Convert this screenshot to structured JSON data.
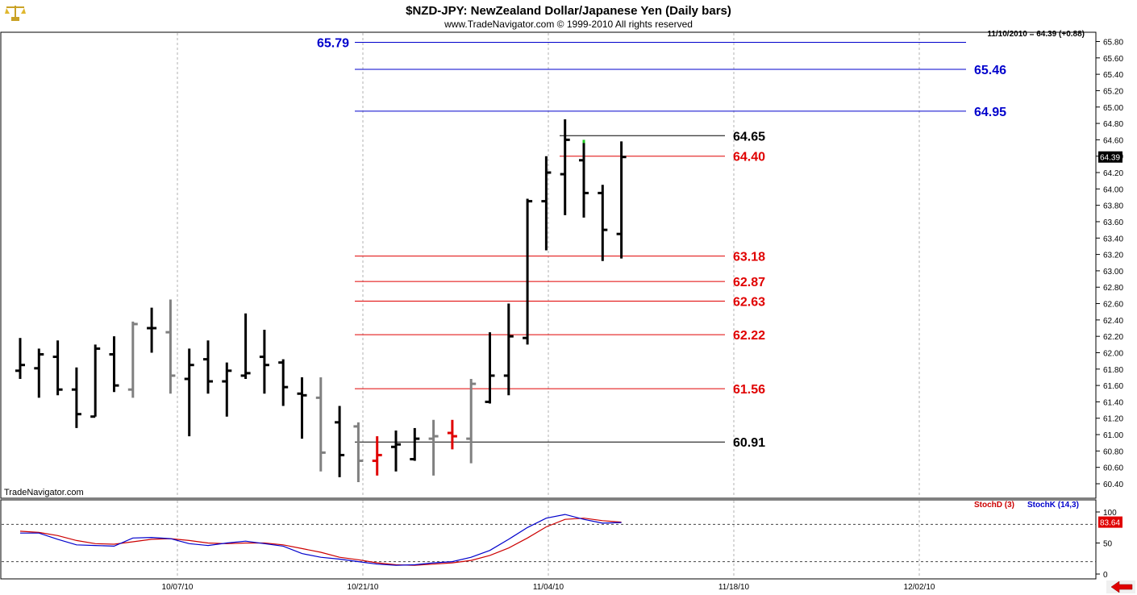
{
  "header": {
    "title": "$NZD-JPY:  NewZealand Dollar/Japanese Yen  (Daily bars)",
    "copyright": "www.TradeNavigator.com © 1999-2010 All rights reserved",
    "last_quote": "11/10/2010 = 64.39 (+0.88)",
    "watermark": "TradeNavigator.com",
    "logo_icon": "scales-icon"
  },
  "colors": {
    "bar": "#000000",
    "bar_gray": "#808080",
    "bar_red": "#e00000",
    "level_blue": "#0000cc",
    "level_red": "#e00000",
    "level_black": "#000000",
    "stoch_d": "#cc0000",
    "stoch_k": "#0000cc",
    "grid": "#b0b0b0",
    "price_tag_bg": "#000000",
    "stoch_tag_bg": "#e00000",
    "nav_arrow": "#e00000"
  },
  "chart_data": [
    {
      "type": "ohlc",
      "title": "$NZD-JPY:  NewZealand Dollar/Japanese Yen  (Daily bars)",
      "x_tick_labels": [
        "10/07/10",
        "10/21/10",
        "11/04/10",
        "11/18/10",
        "12/02/10"
      ],
      "y_tick_labels": [
        "65.80",
        "65.60",
        "65.40",
        "65.20",
        "65.00",
        "64.80",
        "64.60",
        "64.40",
        "64.20",
        "64.00",
        "63.80",
        "63.60",
        "63.40",
        "63.20",
        "63.00",
        "62.80",
        "62.60",
        "62.40",
        "62.20",
        "62.00",
        "61.80",
        "61.60",
        "61.40",
        "61.20",
        "61.00",
        "60.80",
        "60.60",
        "60.40"
      ],
      "ylim": [
        60.3,
        65.9
      ],
      "grid": true,
      "price_axis_tag": "64.39",
      "bars": [
        {
          "date": "9/28/10",
          "o": 61.78,
          "h": 62.18,
          "l": 61.68,
          "c": 61.85,
          "color": "black"
        },
        {
          "date": "9/29/10",
          "o": 61.81,
          "h": 62.05,
          "l": 61.45,
          "c": 61.98,
          "color": "black"
        },
        {
          "date": "9/30/10",
          "o": 61.95,
          "h": 62.15,
          "l": 61.48,
          "c": 61.55,
          "color": "black"
        },
        {
          "date": "10/01/10",
          "o": 61.55,
          "h": 61.82,
          "l": 61.08,
          "c": 61.25,
          "color": "black"
        },
        {
          "date": "10/04/10",
          "o": 61.22,
          "h": 62.1,
          "l": 61.22,
          "c": 62.05,
          "color": "black"
        },
        {
          "date": "10/05/10",
          "o": 61.98,
          "h": 62.2,
          "l": 61.52,
          "c": 61.6,
          "color": "black"
        },
        {
          "date": "10/06/10",
          "o": 61.55,
          "h": 62.38,
          "l": 61.45,
          "c": 62.35,
          "color": "gray"
        },
        {
          "date": "10/07/10",
          "o": 62.3,
          "h": 62.55,
          "l": 62.0,
          "c": 62.3,
          "color": "black"
        },
        {
          "date": "10/08/10",
          "o": 62.25,
          "h": 62.65,
          "l": 61.5,
          "c": 61.72,
          "color": "gray"
        },
        {
          "date": "10/11/10",
          "o": 61.68,
          "h": 62.05,
          "l": 60.98,
          "c": 61.85,
          "color": "black"
        },
        {
          "date": "10/12/10",
          "o": 61.92,
          "h": 62.15,
          "l": 61.5,
          "c": 61.65,
          "color": "black"
        },
        {
          "date": "10/13/10",
          "o": 61.65,
          "h": 61.88,
          "l": 61.22,
          "c": 61.78,
          "color": "black"
        },
        {
          "date": "10/14/10",
          "o": 61.72,
          "h": 62.48,
          "l": 61.68,
          "c": 61.75,
          "color": "black"
        },
        {
          "date": "10/15/10",
          "o": 61.95,
          "h": 62.28,
          "l": 61.5,
          "c": 61.85,
          "color": "black"
        },
        {
          "date": "10/18/10",
          "o": 61.88,
          "h": 61.92,
          "l": 61.35,
          "c": 61.58,
          "color": "black"
        },
        {
          "date": "10/19/10",
          "o": 61.5,
          "h": 61.7,
          "l": 60.95,
          "c": 61.48,
          "color": "black"
        },
        {
          "date": "10/20/10",
          "o": 61.45,
          "h": 61.7,
          "l": 60.55,
          "c": 60.78,
          "color": "gray"
        },
        {
          "date": "10/21/10",
          "o": 61.15,
          "h": 61.35,
          "l": 60.48,
          "c": 60.75,
          "color": "black"
        },
        {
          "date": "10/22/10",
          "o": 61.1,
          "h": 61.15,
          "l": 60.42,
          "c": 60.68,
          "color": "gray"
        },
        {
          "date": "10/25/10",
          "o": 60.68,
          "h": 60.98,
          "l": 60.5,
          "c": 60.75,
          "color": "red"
        },
        {
          "date": "10/26/10",
          "o": 60.85,
          "h": 61.05,
          "l": 60.55,
          "c": 60.88,
          "color": "black"
        },
        {
          "date": "10/27/10",
          "o": 60.7,
          "h": 61.08,
          "l": 60.68,
          "c": 60.95,
          "color": "black"
        },
        {
          "date": "10/28/10",
          "o": 60.95,
          "h": 61.18,
          "l": 60.5,
          "c": 60.98,
          "color": "gray"
        },
        {
          "date": "10/29/10",
          "o": 61.02,
          "h": 61.18,
          "l": 60.82,
          "c": 60.98,
          "color": "red"
        },
        {
          "date": "11/01/10",
          "o": 60.95,
          "h": 61.68,
          "l": 60.65,
          "c": 61.62,
          "color": "gray"
        },
        {
          "date": "11/02/10",
          "o": 61.4,
          "h": 62.25,
          "l": 61.38,
          "c": 61.72,
          "color": "black"
        },
        {
          "date": "11/03/10",
          "o": 61.72,
          "h": 62.6,
          "l": 61.48,
          "c": 62.2,
          "color": "black"
        },
        {
          "date": "11/04/10",
          "o": 62.18,
          "h": 63.88,
          "l": 62.1,
          "c": 63.85,
          "color": "black"
        },
        {
          "date": "11/05/10",
          "o": 63.85,
          "h": 64.4,
          "l": 63.25,
          "c": 64.2,
          "color": "black"
        },
        {
          "date": "11/08/10",
          "o": 64.18,
          "h": 64.85,
          "l": 63.68,
          "c": 64.6,
          "color": "black"
        },
        {
          "date": "11/09/10",
          "o": 64.35,
          "h": 64.58,
          "l": 63.65,
          "c": 63.95,
          "color": "black"
        },
        {
          "date": "11/10/10",
          "o": 63.95,
          "h": 64.05,
          "l": 63.12,
          "c": 63.5,
          "color": "black"
        },
        {
          "date": "11/11/10",
          "o": 63.45,
          "h": 64.58,
          "l": 63.15,
          "c": 64.39,
          "color": "black"
        }
      ],
      "levels": [
        {
          "label": "65.79",
          "value": 65.79,
          "color": "blue"
        },
        {
          "label": "65.46",
          "value": 65.46,
          "color": "blue"
        },
        {
          "label": "64.95",
          "value": 64.95,
          "color": "blue"
        },
        {
          "label": "64.65",
          "value": 64.65,
          "color": "black"
        },
        {
          "label": "64.40",
          "value": 64.4,
          "color": "red"
        },
        {
          "label": "63.18",
          "value": 63.18,
          "color": "red"
        },
        {
          "label": "62.87",
          "value": 62.87,
          "color": "red"
        },
        {
          "label": "62.63",
          "value": 62.63,
          "color": "red"
        },
        {
          "label": "62.22",
          "value": 62.22,
          "color": "red"
        },
        {
          "label": "61.56",
          "value": 61.56,
          "color": "red"
        },
        {
          "label": "60.91",
          "value": 60.91,
          "color": "black"
        }
      ]
    },
    {
      "type": "line",
      "legend": [
        "StochD (3)",
        "StochK (14,3)"
      ],
      "y_tick_labels": [
        "100",
        "50",
        "0"
      ],
      "ylim": [
        -10,
        112
      ],
      "reference_lines": [
        80,
        20
      ],
      "value_tag": "83.64",
      "series": [
        {
          "name": "StochD (3)",
          "values": [
            69,
            67,
            62,
            54,
            49,
            48,
            52,
            56,
            57,
            54,
            50,
            49,
            50,
            50,
            47,
            41,
            35,
            27,
            23,
            18,
            15,
            14,
            16,
            18,
            22,
            30,
            42,
            58,
            76,
            88,
            90,
            86,
            83.64
          ]
        },
        {
          "name": "StochK (14,3)",
          "values": [
            66,
            66,
            56,
            47,
            46,
            45,
            58,
            59,
            57,
            49,
            46,
            50,
            53,
            49,
            45,
            33,
            27,
            24,
            20,
            16,
            14,
            15,
            18,
            20,
            27,
            38,
            56,
            75,
            90,
            96,
            88,
            82,
            83
          ]
        }
      ]
    }
  ],
  "nav": {
    "scroll_arrow_icon": "left-arrow-icon"
  }
}
